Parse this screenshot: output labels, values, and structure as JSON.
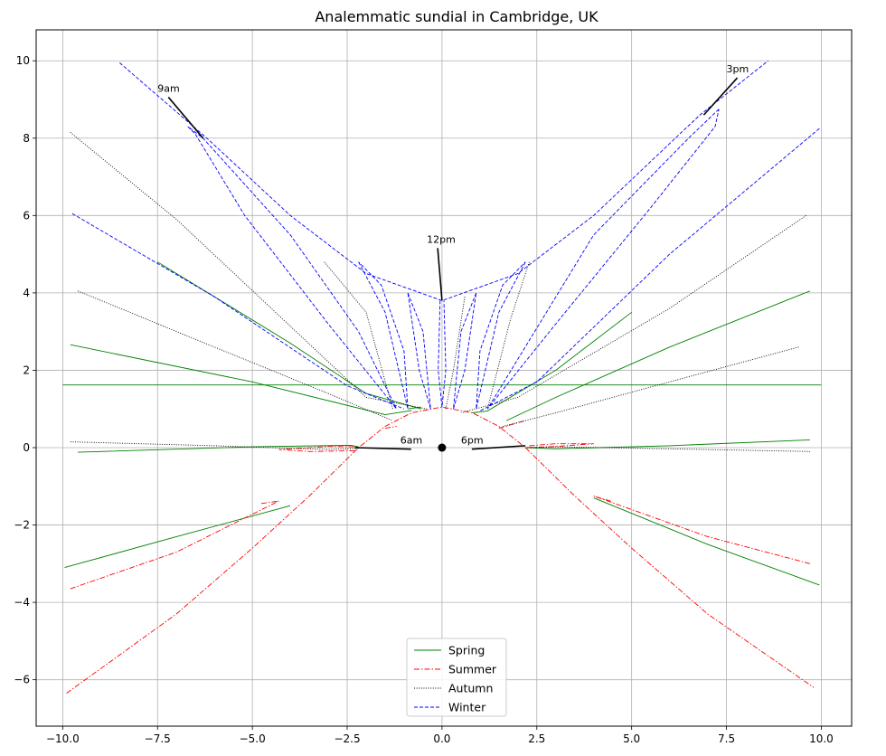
{
  "chart_data": {
    "type": "line",
    "title": "Analemmatic sundial in Cambridge, UK",
    "xlabel": "",
    "ylabel": "",
    "xlim": [
      -10.7,
      10.8
    ],
    "ylim": [
      -7.2,
      10.8
    ],
    "x_ticks": [
      -10.0,
      -7.5,
      -5.0,
      -2.5,
      0.0,
      2.5,
      5.0,
      7.5,
      10.0
    ],
    "x_tick_labels": [
      "−10.0",
      "−7.5",
      "−5.0",
      "−2.5",
      "0.0",
      "2.5",
      "5.0",
      "7.5",
      "10.0"
    ],
    "y_ticks": [
      -6,
      -4,
      -2,
      0,
      2,
      4,
      6,
      8,
      10
    ],
    "y_tick_labels": [
      "−6",
      "−4",
      "−2",
      "0",
      "2",
      "4",
      "6",
      "8",
      "10"
    ],
    "grid": true,
    "legend_position": "bottom-center",
    "series": [
      {
        "name": "Spring",
        "color": "#008000",
        "dash": "solid",
        "lines": [
          [
            [
              -10.0,
              1.62
            ],
            [
              10.0,
              1.62
            ]
          ],
          [
            [
              -9.8,
              2.66
            ],
            [
              -5.0,
              1.7
            ],
            [
              -1.5,
              0.85
            ],
            [
              -0.8,
              0.96
            ]
          ],
          [
            [
              -7.5,
              4.8
            ],
            [
              -4.0,
              2.7
            ],
            [
              -2.0,
              1.4
            ],
            [
              -0.55,
              1.0
            ]
          ],
          [
            [
              -0.9,
              1.0
            ],
            [
              -0.55,
              1.05
            ]
          ],
          [
            [
              -9.6,
              -0.12
            ],
            [
              -5.0,
              0.02
            ],
            [
              -2.4,
              0.06
            ],
            [
              -2.2,
              0.02
            ]
          ],
          [
            [
              -9.95,
              -3.1
            ],
            [
              -7.0,
              -2.3
            ],
            [
              -4.0,
              -1.5
            ]
          ],
          [
            [
              9.7,
              4.05
            ],
            [
              6.0,
              2.6
            ],
            [
              3.0,
              1.3
            ],
            [
              1.7,
              0.7
            ]
          ],
          [
            [
              5.0,
              3.5
            ],
            [
              3.0,
              2.0
            ],
            [
              1.2,
              0.95
            ],
            [
              0.8,
              0.9
            ]
          ],
          [
            [
              9.7,
              0.2
            ],
            [
              6.0,
              0.05
            ],
            [
              3.0,
              -0.03
            ],
            [
              2.2,
              0.0
            ]
          ],
          [
            [
              9.95,
              -3.55
            ],
            [
              7.0,
              -2.5
            ],
            [
              4.0,
              -1.3
            ]
          ]
        ]
      },
      {
        "name": "Summer",
        "color": "#ff0000",
        "dash": "dashdot",
        "lines": [
          [
            [
              -9.9,
              -6.35
            ],
            [
              -7.0,
              -4.3
            ],
            [
              -5.0,
              -2.6
            ],
            [
              -3.5,
              -1.25
            ],
            [
              -2.2,
              0.0
            ],
            [
              -1.5,
              0.55
            ],
            [
              -0.8,
              0.9
            ],
            [
              0.0,
              1.05
            ],
            [
              0.8,
              0.9
            ],
            [
              1.5,
              0.55
            ],
            [
              2.2,
              0.0
            ],
            [
              3.5,
              -1.25
            ],
            [
              5.0,
              -2.6
            ],
            [
              7.0,
              -4.3
            ],
            [
              9.8,
              -6.2
            ]
          ],
          [
            [
              -9.8,
              -3.65
            ],
            [
              -7.0,
              -2.7
            ],
            [
              -4.3,
              -1.38
            ],
            [
              -4.8,
              -1.45
            ]
          ],
          [
            [
              -2.3,
              -0.08
            ],
            [
              -3.5,
              -0.1
            ],
            [
              -4.3,
              -0.05
            ],
            [
              -3.0,
              0.03
            ],
            [
              -2.2,
              0.02
            ]
          ],
          [
            [
              -1.5,
              0.5
            ],
            [
              -1.2,
              0.55
            ]
          ],
          [
            [
              2.3,
              0.05
            ],
            [
              3.0,
              0.1
            ],
            [
              4.0,
              0.1
            ],
            [
              3.0,
              0.03
            ],
            [
              2.2,
              0.0
            ]
          ],
          [
            [
              1.5,
              0.5
            ],
            [
              2.2,
              0.7
            ]
          ],
          [
            [
              9.7,
              -3.0
            ],
            [
              7.0,
              -2.3
            ],
            [
              4.0,
              -1.25
            ],
            [
              4.5,
              -1.4
            ]
          ]
        ]
      },
      {
        "name": "Autumn",
        "color": "#000000",
        "dash": "dotted",
        "lines": [
          [
            [
              -9.8,
              8.15
            ],
            [
              -7.0,
              5.9
            ],
            [
              -4.5,
              3.6
            ],
            [
              -2.0,
              1.3
            ],
            [
              -0.4,
              1.0
            ]
          ],
          [
            [
              -9.6,
              4.05
            ],
            [
              -6.0,
              2.6
            ],
            [
              -3.0,
              1.4
            ],
            [
              -1.3,
              0.7
            ]
          ],
          [
            [
              -9.8,
              0.15
            ],
            [
              -6.0,
              0.05
            ],
            [
              -3.0,
              -0.05
            ],
            [
              -2.2,
              -0.02
            ]
          ],
          [
            [
              -3.1,
              4.8
            ],
            [
              -2.0,
              3.5
            ],
            [
              -1.3,
              1.0
            ]
          ],
          [
            [
              0.6,
              3.9
            ],
            [
              0.3,
              2.0
            ],
            [
              0.1,
              1.0
            ]
          ],
          [
            [
              9.6,
              6.0
            ],
            [
              6.0,
              3.6
            ],
            [
              2.0,
              1.3
            ],
            [
              0.5,
              0.9
            ]
          ],
          [
            [
              9.4,
              2.6
            ],
            [
              6.0,
              1.7
            ],
            [
              3.0,
              0.9
            ],
            [
              1.6,
              0.55
            ]
          ],
          [
            [
              9.7,
              -0.1
            ],
            [
              6.0,
              -0.03
            ],
            [
              3.0,
              0.02
            ],
            [
              2.2,
              0.0
            ]
          ],
          [
            [
              2.3,
              4.8
            ],
            [
              1.8,
              3.3
            ],
            [
              1.2,
              1.0
            ]
          ]
        ]
      },
      {
        "name": "Winter",
        "color": "#0000ff",
        "dash": "dashed",
        "lines": [
          [
            [
              -8.5,
              9.95
            ],
            [
              -6.2,
              8.0
            ],
            [
              -4.0,
              6.0
            ],
            [
              -2.0,
              4.5
            ],
            [
              0.0,
              3.8
            ],
            [
              2.0,
              4.5
            ],
            [
              4.0,
              6.0
            ],
            [
              6.8,
              8.6
            ],
            [
              8.6,
              10.0
            ]
          ],
          [
            [
              -9.75,
              6.05
            ],
            [
              -6.0,
              3.9
            ],
            [
              -2.5,
              1.6
            ],
            [
              -1.0,
              1.0
            ]
          ],
          [
            [
              -6.7,
              8.3
            ],
            [
              -6.5,
              8.1
            ],
            [
              -5.2,
              6.0
            ],
            [
              -3.0,
              3.2
            ],
            [
              -1.2,
              1.0
            ],
            [
              -2.2,
              3.0
            ],
            [
              -4.0,
              5.5
            ],
            [
              -6.3,
              8.0
            ],
            [
              -6.7,
              8.3
            ]
          ],
          [
            [
              -2.2,
              4.8
            ],
            [
              -1.5,
              3.5
            ],
            [
              -0.9,
              1.0
            ],
            [
              -1.0,
              2.5
            ],
            [
              -1.6,
              4.2
            ],
            [
              -2.2,
              4.8
            ]
          ],
          [
            [
              -0.9,
              4.0
            ],
            [
              -0.5,
              3.0
            ],
            [
              -0.3,
              1.0
            ],
            [
              -0.6,
              2.0
            ],
            [
              -0.9,
              4.0
            ]
          ],
          [
            [
              -0.05,
              3.8
            ],
            [
              -0.1,
              2.0
            ],
            [
              0.0,
              1.05
            ],
            [
              0.1,
              2.0
            ],
            [
              0.05,
              3.8
            ]
          ],
          [
            [
              0.9,
              4.0
            ],
            [
              0.5,
              3.0
            ],
            [
              0.3,
              1.0
            ],
            [
              0.6,
              2.0
            ],
            [
              0.9,
              4.0
            ]
          ],
          [
            [
              2.2,
              4.8
            ],
            [
              1.5,
              3.5
            ],
            [
              0.9,
              1.0
            ],
            [
              1.0,
              2.5
            ],
            [
              1.6,
              4.2
            ],
            [
              2.2,
              4.8
            ]
          ],
          [
            [
              7.3,
              8.75
            ],
            [
              6.5,
              8.0
            ],
            [
              4.0,
              5.5
            ],
            [
              1.2,
              1.0
            ],
            [
              3.0,
              3.2
            ],
            [
              5.5,
              6.2
            ],
            [
              7.2,
              8.3
            ],
            [
              7.3,
              8.75
            ]
          ],
          [
            [
              9.95,
              8.25
            ],
            [
              6.0,
              5.0
            ],
            [
              2.5,
              1.7
            ],
            [
              1.0,
              0.95
            ]
          ]
        ]
      }
    ],
    "center_point": [
      0.0,
      0.0
    ],
    "annotations": [
      {
        "text": "9am",
        "text_xy": [
          -7.5,
          9.2
        ],
        "arrow_to": [
          -6.3,
          8.0
        ]
      },
      {
        "text": "3pm",
        "text_xy": [
          7.5,
          9.7
        ],
        "arrow_to": [
          6.9,
          8.6
        ]
      },
      {
        "text": "12pm",
        "text_xy": [
          -0.4,
          5.3
        ],
        "arrow_to": [
          0.0,
          3.8
        ]
      },
      {
        "text": "6am",
        "text_xy": [
          -1.1,
          0.1
        ],
        "arrow_to": [
          -2.3,
          0.0
        ]
      },
      {
        "text": "6pm",
        "text_xy": [
          0.5,
          0.1
        ],
        "arrow_to": [
          2.2,
          0.05
        ]
      }
    ]
  }
}
